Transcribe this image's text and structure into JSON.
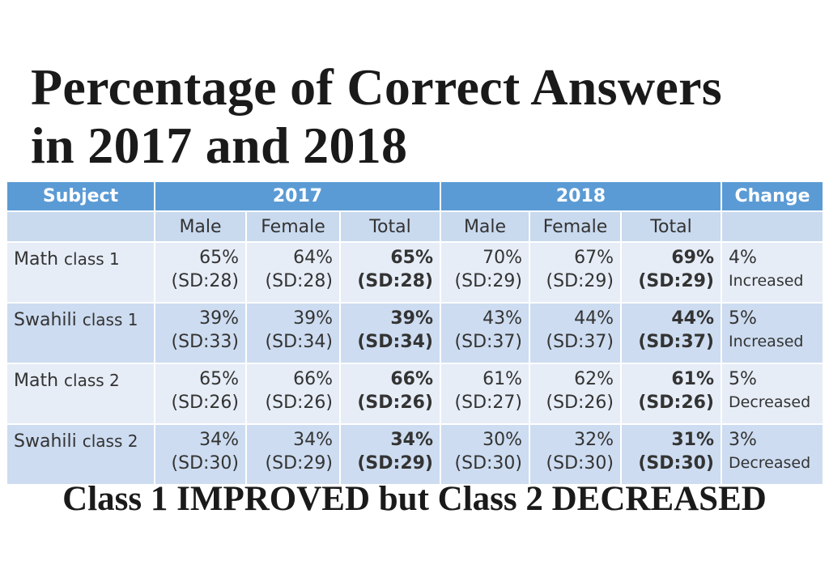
{
  "title": {
    "line1": "Percentage of Correct Answers",
    "line2": "in 2017 and 2018"
  },
  "table": {
    "header": {
      "subject": "Subject",
      "year1": "2017",
      "year2": "2018",
      "change": "Change"
    },
    "subheader": {
      "male": "Male",
      "female": "Female",
      "total": "Total"
    },
    "rows": [
      {
        "subject": "Math",
        "class": "class 1",
        "y2017": {
          "male": "65%",
          "male_sd": "(SD:28)",
          "female": "64%",
          "female_sd": "(SD:28)",
          "total": "65%",
          "total_sd": "(SD:28)"
        },
        "y2018": {
          "male": "70%",
          "male_sd": "(SD:29)",
          "female": "67%",
          "female_sd": "(SD:29)",
          "total": "69%",
          "total_sd": "(SD:29)"
        },
        "change": "4%",
        "change_label": "Increased"
      },
      {
        "subject": "Swahili",
        "class": "class 1",
        "y2017": {
          "male": "39%",
          "male_sd": "(SD:33)",
          "female": "39%",
          "female_sd": "(SD:34)",
          "total": "39%",
          "total_sd": "(SD:34)"
        },
        "y2018": {
          "male": "43%",
          "male_sd": "(SD:37)",
          "female": "44%",
          "female_sd": "(SD:37)",
          "total": "44%",
          "total_sd": "(SD:37)"
        },
        "change": "5%",
        "change_label": "Increased"
      },
      {
        "subject": "Math",
        "class": "class 2",
        "y2017": {
          "male": "65%",
          "male_sd": "(SD:26)",
          "female": "66%",
          "female_sd": "(SD:26)",
          "total": "66%",
          "total_sd": "(SD:26)"
        },
        "y2018": {
          "male": "61%",
          "male_sd": "(SD:27)",
          "female": "62%",
          "female_sd": "(SD:26)",
          "total": "61%",
          "total_sd": "(SD:26)"
        },
        "change": "5%",
        "change_label": "Decreased"
      },
      {
        "subject": "Swahili",
        "class": "class 2",
        "y2017": {
          "male": "34%",
          "male_sd": "(SD:30)",
          "female": "34%",
          "female_sd": "(SD:29)",
          "total": "34%",
          "total_sd": "(SD:29)"
        },
        "y2018": {
          "male": "30%",
          "male_sd": "(SD:30)",
          "female": "32%",
          "female_sd": "(SD:30)",
          "total": "31%",
          "total_sd": "(SD:30)"
        },
        "change": "3%",
        "change_label": "Decreased"
      }
    ]
  },
  "footer": "Class 1 IMPROVED but Class 2 DECREASED",
  "colors": {
    "header_blue": "#5b9bd5",
    "subheader": "#c9d9ee",
    "row_light": "#e6edf7",
    "row_dark": "#cddcf0"
  }
}
